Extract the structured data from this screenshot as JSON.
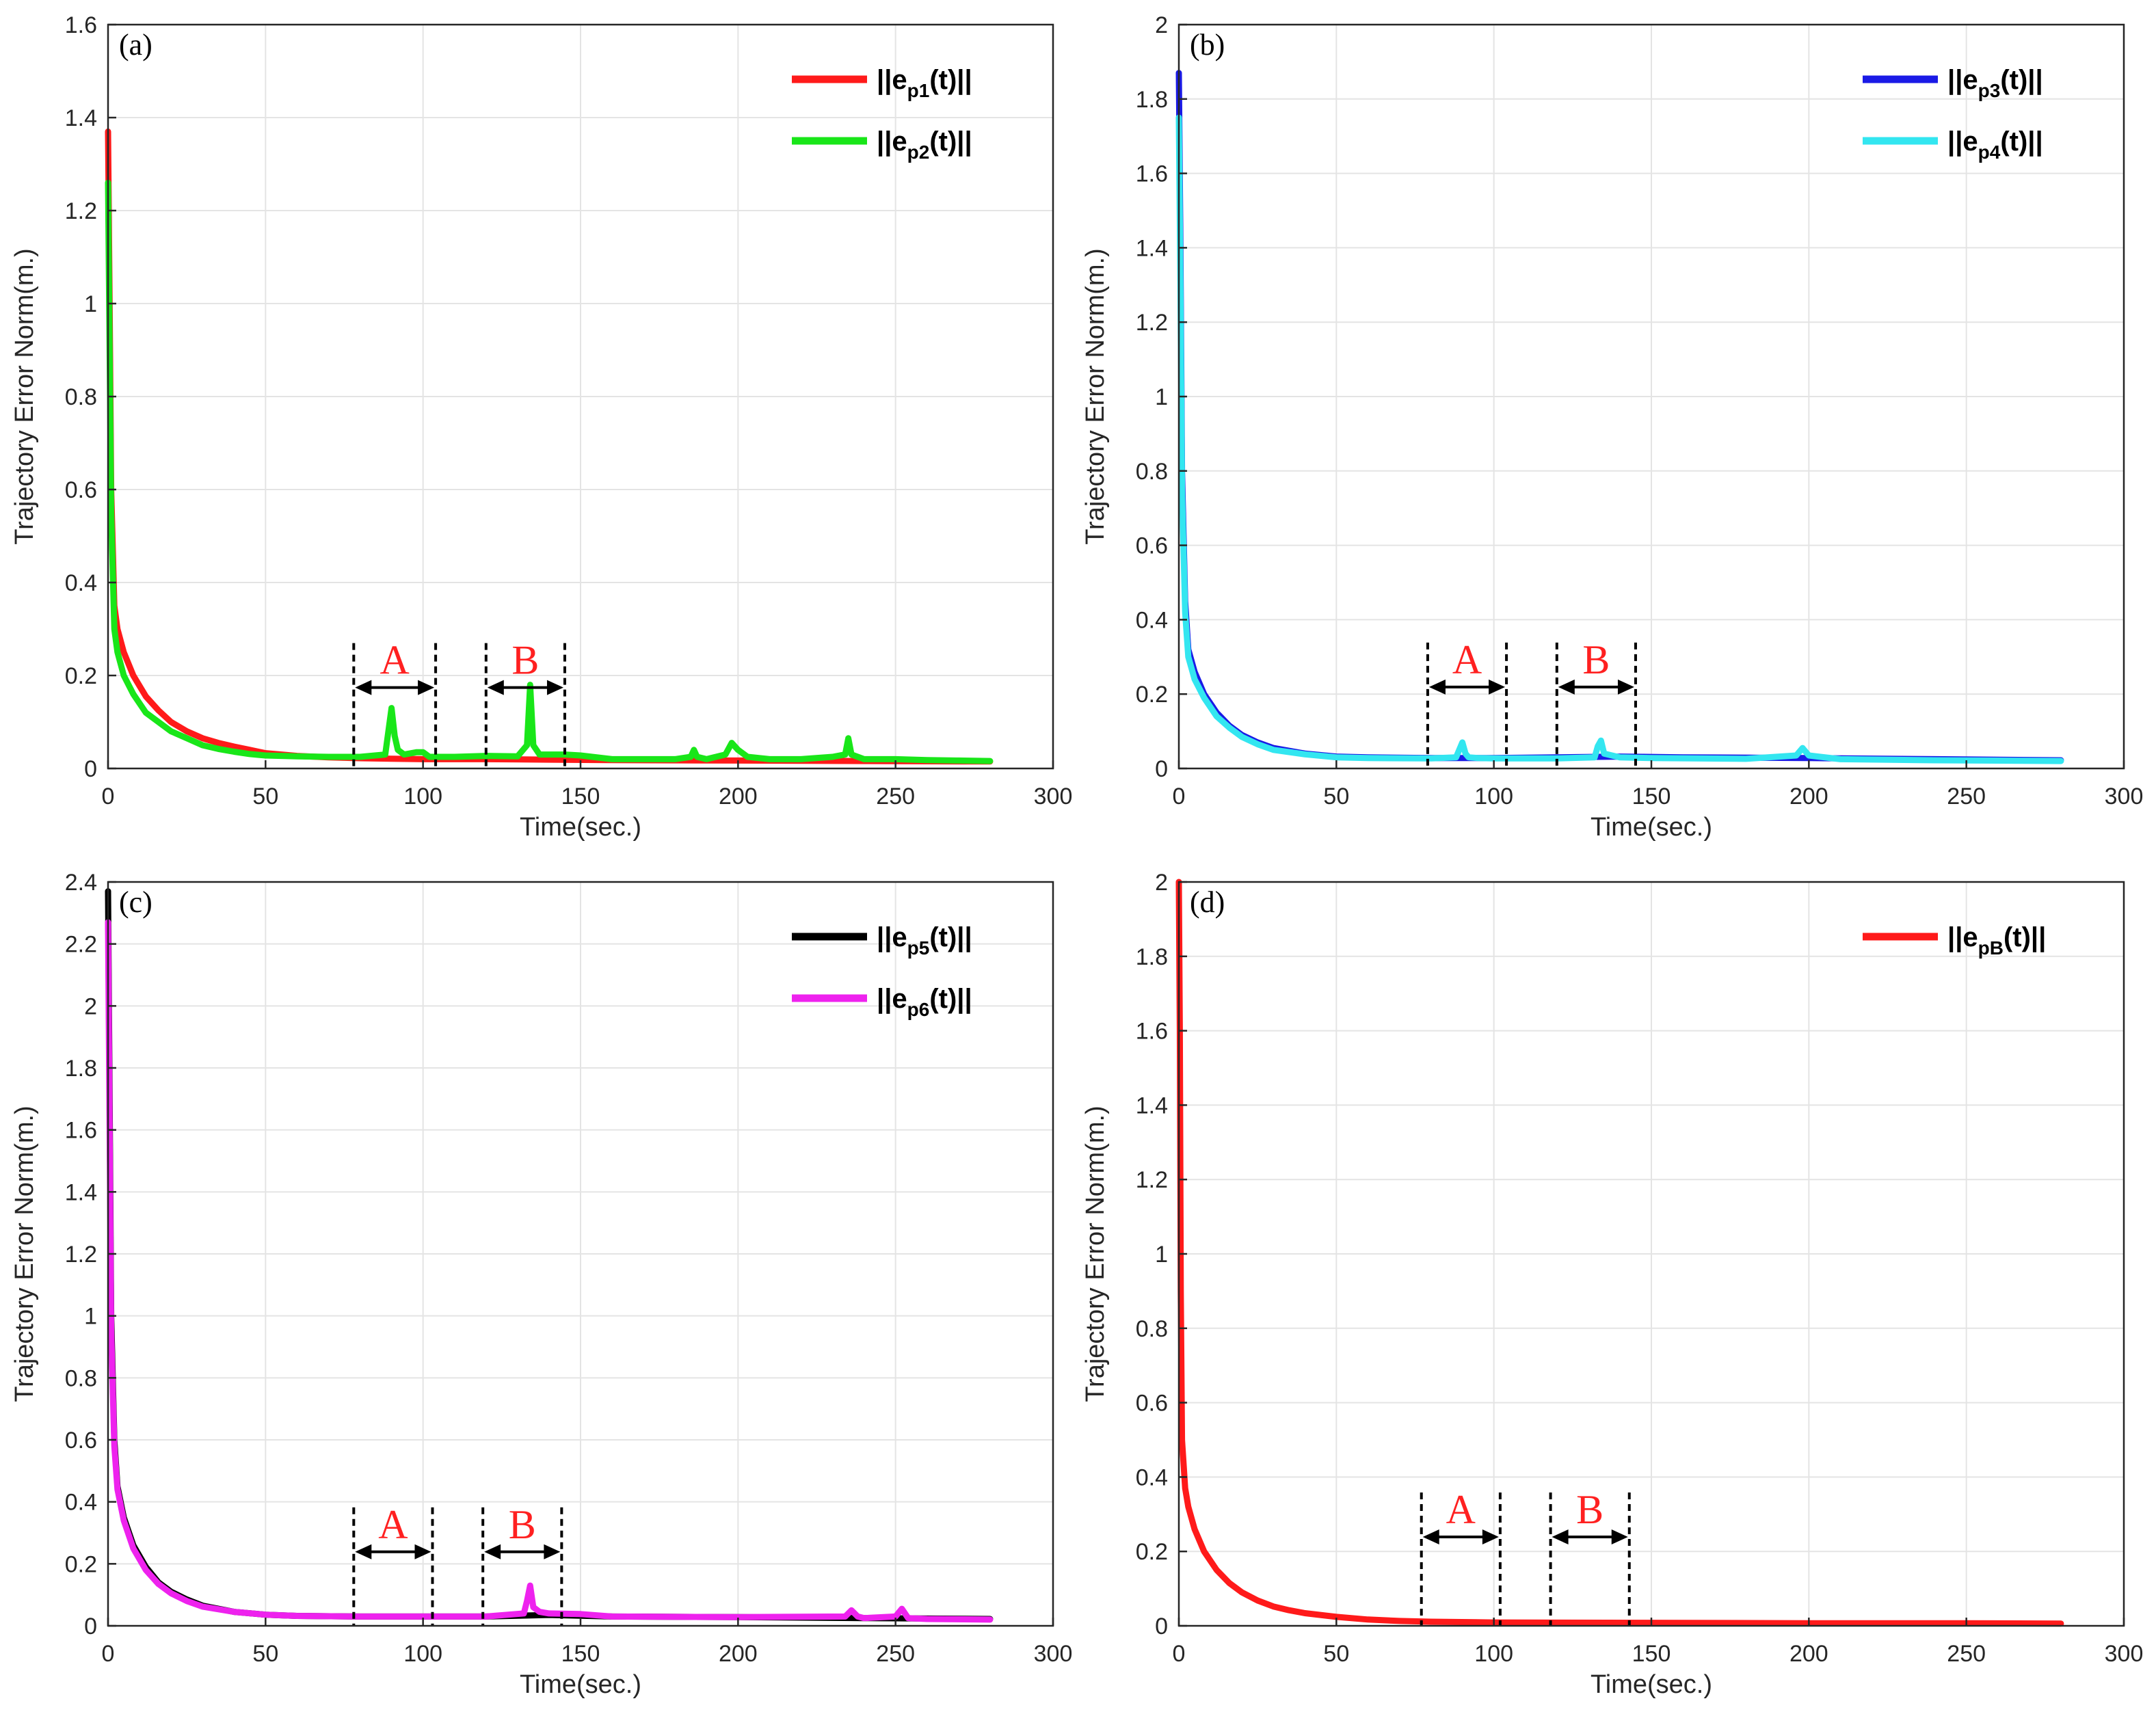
{
  "chart_data": [
    {
      "type": "line",
      "panel": "(a)",
      "xlabel": "Time(sec.)",
      "ylabel": "Trajectory Error Norm(m.)",
      "xlim": [
        0,
        300
      ],
      "ylim": [
        0,
        1.6
      ],
      "xticks": [
        0,
        50,
        100,
        150,
        200,
        250,
        300
      ],
      "yticks": [
        0,
        0.2,
        0.4,
        0.6,
        0.8,
        1,
        1.2,
        1.4,
        1.6
      ],
      "ytick_labels": [
        "0",
        "0.2",
        "0.4",
        "0.6",
        "0.8",
        "1",
        "1.2",
        "1.4",
        "1.6"
      ],
      "legend": "top-right",
      "regions": [
        {
          "label": "A",
          "x0": 78,
          "x1": 104,
          "y": 0.255
        },
        {
          "label": "B",
          "x0": 120,
          "x1": 145,
          "y": 0.255
        }
      ],
      "series": [
        {
          "name": "||e",
          "sub": "p1",
          "suffix": "(t)||",
          "color": "#ff1a1a",
          "x": [
            0,
            0.5,
            1,
            2,
            3,
            5,
            8,
            12,
            16,
            20,
            25,
            30,
            35,
            40,
            45,
            50,
            60,
            70,
            80,
            90,
            100,
            120,
            140,
            160,
            200,
            240,
            280
          ],
          "y": [
            1.37,
            1.0,
            0.6,
            0.35,
            0.3,
            0.25,
            0.2,
            0.155,
            0.125,
            0.1,
            0.08,
            0.065,
            0.055,
            0.047,
            0.04,
            0.033,
            0.027,
            0.024,
            0.022,
            0.021,
            0.02,
            0.02,
            0.019,
            0.018,
            0.017,
            0.016,
            0.015
          ]
        },
        {
          "name": "||e",
          "sub": "p2",
          "suffix": "(t)||",
          "color": "#19e619",
          "x": [
            0,
            0.5,
            1,
            2,
            3,
            5,
            8,
            12,
            16,
            20,
            25,
            30,
            35,
            40,
            45,
            50,
            60,
            70,
            80,
            88,
            90,
            91,
            92,
            94,
            98,
            100,
            102,
            110,
            120,
            130,
            133,
            134,
            135,
            137,
            140,
            145,
            150,
            160,
            170,
            180,
            185,
            186,
            187,
            190,
            196,
            198,
            200,
            203,
            210,
            220,
            230,
            234,
            235,
            236,
            240,
            250,
            260,
            270,
            280
          ],
          "y": [
            1.26,
            0.9,
            0.55,
            0.3,
            0.25,
            0.2,
            0.16,
            0.12,
            0.1,
            0.08,
            0.065,
            0.05,
            0.042,
            0.036,
            0.031,
            0.028,
            0.026,
            0.025,
            0.025,
            0.03,
            0.13,
            0.07,
            0.04,
            0.03,
            0.035,
            0.035,
            0.025,
            0.025,
            0.027,
            0.026,
            0.05,
            0.18,
            0.05,
            0.03,
            0.03,
            0.03,
            0.028,
            0.02,
            0.02,
            0.02,
            0.025,
            0.04,
            0.025,
            0.02,
            0.03,
            0.055,
            0.04,
            0.025,
            0.02,
            0.02,
            0.025,
            0.03,
            0.065,
            0.03,
            0.02,
            0.02,
            0.018,
            0.017,
            0.016
          ]
        }
      ]
    },
    {
      "type": "line",
      "panel": "(b)",
      "xlabel": "Time(sec.)",
      "ylabel": "Trajectory Error Norm(m.)",
      "xlim": [
        0,
        300
      ],
      "ylim": [
        0,
        2
      ],
      "xticks": [
        0,
        50,
        100,
        150,
        200,
        250,
        300
      ],
      "yticks": [
        0,
        0.2,
        0.4,
        0.6,
        0.8,
        1,
        1.2,
        1.4,
        1.6,
        1.8,
        2
      ],
      "ytick_labels": [
        "0",
        "0.2",
        "0.4",
        "0.6",
        "0.8",
        "1",
        "1.2",
        "1.4",
        "1.6",
        "1.8",
        "2"
      ],
      "legend": "top-right",
      "regions": [
        {
          "label": "A",
          "x0": 79,
          "x1": 104,
          "y": 0.32
        },
        {
          "label": "B",
          "x0": 120,
          "x1": 145,
          "y": 0.32
        }
      ],
      "series": [
        {
          "name": "||e",
          "sub": "p3",
          "suffix": "(t)||",
          "color": "#1a1ae6",
          "x": [
            0,
            0.5,
            1,
            2,
            3,
            5,
            8,
            12,
            16,
            20,
            25,
            30,
            40,
            50,
            60,
            80,
            100,
            120,
            140,
            160,
            200,
            240,
            280
          ],
          "y": [
            1.87,
            1.4,
            0.8,
            0.45,
            0.32,
            0.26,
            0.2,
            0.15,
            0.115,
            0.09,
            0.07,
            0.055,
            0.04,
            0.032,
            0.03,
            0.028,
            0.028,
            0.03,
            0.032,
            0.03,
            0.028,
            0.025,
            0.022
          ]
        },
        {
          "name": "||e",
          "sub": "p4",
          "suffix": "(t)||",
          "color": "#33e6f0",
          "x": [
            0,
            0.5,
            1,
            2,
            3,
            5,
            8,
            12,
            16,
            20,
            25,
            30,
            40,
            50,
            60,
            80,
            88,
            90,
            91,
            92,
            95,
            100,
            120,
            132,
            133,
            134,
            135,
            140,
            150,
            180,
            196,
            198,
            200,
            210,
            240,
            280
          ],
          "y": [
            1.75,
            1.3,
            0.75,
            0.42,
            0.3,
            0.24,
            0.19,
            0.14,
            0.11,
            0.085,
            0.065,
            0.05,
            0.038,
            0.03,
            0.028,
            0.027,
            0.03,
            0.07,
            0.04,
            0.03,
            0.028,
            0.027,
            0.027,
            0.03,
            0.06,
            0.075,
            0.04,
            0.03,
            0.028,
            0.026,
            0.035,
            0.055,
            0.035,
            0.025,
            0.022,
            0.02
          ]
        }
      ]
    },
    {
      "type": "line",
      "panel": "(c)",
      "xlabel": "Time(sec.)",
      "ylabel": "Trajectory Error Norm(m.)",
      "xlim": [
        0,
        300
      ],
      "ylim": [
        0,
        2.4
      ],
      "xticks": [
        0,
        50,
        100,
        150,
        200,
        250,
        300
      ],
      "yticks": [
        0,
        0.2,
        0.4,
        0.6,
        0.8,
        1,
        1.2,
        1.4,
        1.6,
        1.8,
        2,
        2.2,
        2.4
      ],
      "ytick_labels": [
        "0",
        "0.2",
        "0.4",
        "0.6",
        "0.8",
        "1",
        "1.2",
        "1.4",
        "1.6",
        "1.8",
        "2",
        "2.2",
        "2.4"
      ],
      "legend": "top-right",
      "regions": [
        {
          "label": "A",
          "x0": 78,
          "x1": 103,
          "y": 0.36
        },
        {
          "label": "B",
          "x0": 119,
          "x1": 144,
          "y": 0.36
        }
      ],
      "series": [
        {
          "name": "||e",
          "sub": "p5",
          "suffix": "(t)||",
          "color": "#000000",
          "x": [
            0,
            0.5,
            1,
            2,
            3,
            5,
            8,
            12,
            16,
            20,
            25,
            30,
            40,
            50,
            60,
            80,
            100,
            120,
            140,
            160,
            200,
            240,
            280
          ],
          "y": [
            2.37,
            1.7,
            1.0,
            0.6,
            0.45,
            0.35,
            0.26,
            0.19,
            0.14,
            0.11,
            0.085,
            0.065,
            0.045,
            0.036,
            0.032,
            0.03,
            0.03,
            0.03,
            0.035,
            0.03,
            0.028,
            0.025,
            0.022
          ]
        },
        {
          "name": "||e",
          "sub": "p6",
          "suffix": "(t)||",
          "color": "#ee22ee",
          "x": [
            0,
            0.5,
            1,
            2,
            3,
            5,
            8,
            12,
            16,
            20,
            25,
            30,
            40,
            50,
            60,
            80,
            100,
            120,
            132,
            133,
            134,
            135,
            137,
            140,
            150,
            160,
            200,
            234,
            236,
            238,
            240,
            250,
            252,
            254,
            260,
            280
          ],
          "y": [
            2.27,
            1.6,
            0.95,
            0.58,
            0.44,
            0.34,
            0.25,
            0.18,
            0.135,
            0.105,
            0.08,
            0.062,
            0.045,
            0.036,
            0.032,
            0.03,
            0.03,
            0.03,
            0.04,
            0.08,
            0.13,
            0.06,
            0.045,
            0.04,
            0.038,
            0.03,
            0.028,
            0.03,
            0.05,
            0.03,
            0.025,
            0.03,
            0.055,
            0.025,
            0.022,
            0.02
          ]
        }
      ]
    },
    {
      "type": "line",
      "panel": "(d)",
      "xlabel": "Time(sec.)",
      "ylabel": "Trajectory Error Norm(m.)",
      "xlim": [
        0,
        300
      ],
      "ylim": [
        0,
        2
      ],
      "xticks": [
        0,
        50,
        100,
        150,
        200,
        250,
        300
      ],
      "yticks": [
        0,
        0.2,
        0.4,
        0.6,
        0.8,
        1,
        1.2,
        1.4,
        1.6,
        1.8,
        2
      ],
      "ytick_labels": [
        "0",
        "0.2",
        "0.4",
        "0.6",
        "0.8",
        "1",
        "1.2",
        "1.4",
        "1.6",
        "1.8",
        "2"
      ],
      "legend": "top-right",
      "regions": [
        {
          "label": "A",
          "x0": 77,
          "x1": 102,
          "y": 0.34
        },
        {
          "label": "B",
          "x0": 118,
          "x1": 143,
          "y": 0.34
        }
      ],
      "series": [
        {
          "name": "||e",
          "sub": "pB",
          "suffix": "(t)||",
          "color": "#ff1a1a",
          "x": [
            0,
            0.3,
            0.6,
            1,
            2,
            3,
            5,
            8,
            12,
            16,
            20,
            25,
            30,
            35,
            40,
            50,
            60,
            70,
            80,
            100,
            150,
            200,
            250,
            280
          ],
          "y": [
            2.0,
            1.6,
            0.9,
            0.5,
            0.37,
            0.32,
            0.26,
            0.2,
            0.15,
            0.115,
            0.09,
            0.068,
            0.052,
            0.042,
            0.034,
            0.024,
            0.017,
            0.013,
            0.011,
            0.009,
            0.008,
            0.007,
            0.007,
            0.006
          ]
        }
      ]
    }
  ]
}
